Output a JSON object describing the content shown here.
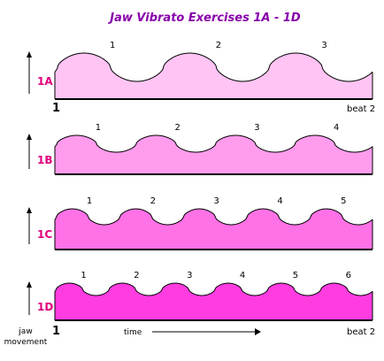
{
  "title": "Jaw Vibrato Exercises 1A - 1D",
  "colors": {
    "title": "#8800aa",
    "label": "#e0007a",
    "ink": "#000000",
    "panel_fills": [
      "#ffc4f3",
      "#ff9ced",
      "#ff71e6",
      "#ff3ce0"
    ]
  },
  "panels": [
    {
      "id": "1A",
      "label": "1A",
      "pulses_per_two_beats": 3,
      "beat_numbers": [
        "1",
        "2",
        "3"
      ]
    },
    {
      "id": "1B",
      "label": "1B",
      "pulses_per_two_beats": 4,
      "beat_numbers": [
        "1",
        "2",
        "3",
        "4"
      ]
    },
    {
      "id": "1C",
      "label": "1C",
      "pulses_per_two_beats": 5,
      "beat_numbers": [
        "1",
        "2",
        "3",
        "4",
        "5"
      ]
    },
    {
      "id": "1D",
      "label": "1D",
      "pulses_per_two_beats": 6,
      "beat_numbers": [
        "1",
        "2",
        "3",
        "4",
        "5",
        "6"
      ]
    }
  ],
  "axis": {
    "start_label": "1",
    "end_label": "beat 2",
    "y_label_line1": "jaw",
    "y_label_line2": "movement",
    "x_label": "time"
  }
}
